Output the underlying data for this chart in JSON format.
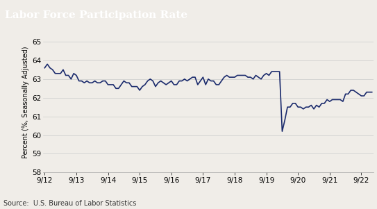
{
  "title": "Labor Force Participation Rate",
  "ylabel": "Percent (%, Seasonally Adjusted)",
  "source": "Source:  U.S. Bureau of Labor Statistics",
  "line_color": "#1a2a6c",
  "background_color": "#f0ede8",
  "title_bg_color": "#555555",
  "title_text_color": "#ffffff",
  "ylim": [
    58,
    65.5
  ],
  "yticks": [
    58,
    59,
    60,
    61,
    62,
    63,
    64,
    65
  ],
  "x_labels": [
    "9/12",
    "9/13",
    "9/14",
    "9/15",
    "9/16",
    "9/17",
    "9/18",
    "9/19",
    "9/20",
    "9/21",
    "9/22"
  ],
  "lfpr_data": [
    63.6,
    63.8,
    63.6,
    63.5,
    63.3,
    63.3,
    63.3,
    63.5,
    63.2,
    63.2,
    63.0,
    63.3,
    63.2,
    62.9,
    62.9,
    62.8,
    62.9,
    62.8,
    62.8,
    62.9,
    62.8,
    62.8,
    62.9,
    62.9,
    62.7,
    62.7,
    62.7,
    62.5,
    62.5,
    62.7,
    62.9,
    62.8,
    62.8,
    62.6,
    62.6,
    62.6,
    62.4,
    62.6,
    62.7,
    62.9,
    63.0,
    62.9,
    62.6,
    62.8,
    62.9,
    62.8,
    62.7,
    62.8,
    62.9,
    62.7,
    62.7,
    62.9,
    62.9,
    63.0,
    62.9,
    63.0,
    63.1,
    63.1,
    62.7,
    62.9,
    63.1,
    62.7,
    63.0,
    62.9,
    62.9,
    62.7,
    62.7,
    62.9,
    63.1,
    63.2,
    63.1,
    63.1,
    63.1,
    63.2,
    63.2,
    63.2,
    63.2,
    63.1,
    63.1,
    63.0,
    63.2,
    63.1,
    63.0,
    63.2,
    63.3,
    63.2,
    63.4,
    63.4,
    63.4,
    63.4,
    60.2,
    60.8,
    61.5,
    61.5,
    61.7,
    61.7,
    61.5,
    61.5,
    61.4,
    61.5,
    61.5,
    61.6,
    61.4,
    61.6,
    61.5,
    61.7,
    61.7,
    61.9,
    61.8,
    61.9,
    61.9,
    61.9,
    61.9,
    61.8,
    62.2,
    62.2,
    62.4,
    62.4,
    62.3,
    62.2,
    62.1,
    62.1,
    62.3,
    62.3,
    62.3
  ],
  "line_width": 1.2,
  "tick_fontsize": 7.5,
  "ylabel_fontsize": 7,
  "source_fontsize": 7
}
